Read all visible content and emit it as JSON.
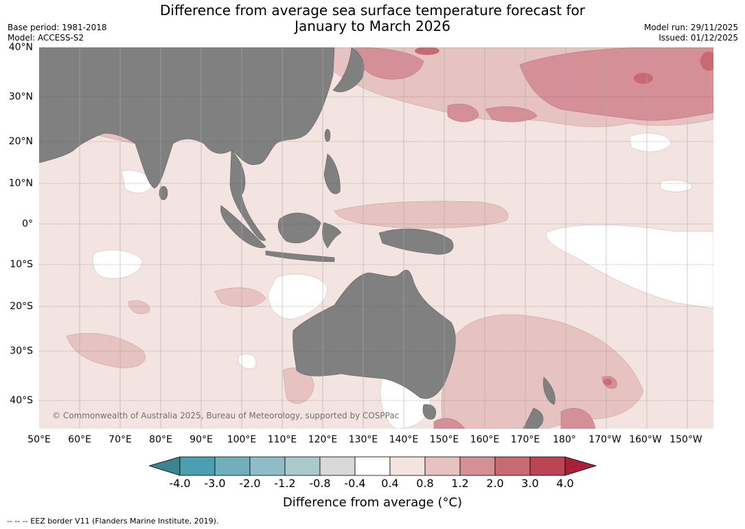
{
  "title_line1": "Difference from average sea surface temperature forecast for",
  "title_line2": "January to March 2026",
  "base_period": "Base period: 1981-2018",
  "model": "Model: ACCESS-S2",
  "model_run": "Model run: 29/11/2025",
  "issued": "Issued: 01/12/2025",
  "copyright": "© Commonwealth of Australia 2025, Bureau of Meteorology, supported by COSPPac",
  "colorbar_label": "Difference from average (°C)",
  "footer": "-- -- -- EEZ border V11 (Flanders Marine Institute, 2019).",
  "lat_labels": [
    "40°N",
    "30°N",
    "20°N",
    "10°N",
    "0°",
    "10°S",
    "20°S",
    "30°S",
    "40°S"
  ],
  "lon_labels": [
    "50°E",
    "60°E",
    "70°E",
    "80°E",
    "90°E",
    "100°E",
    "110°E",
    "120°E",
    "130°E",
    "140°E",
    "150°E",
    "160°E",
    "170°E",
    "180°",
    "170°W",
    "160°W",
    "150°W"
  ],
  "colorbar_ticks": [
    "-4.0",
    "-3.0",
    "-2.0",
    "-1.2",
    "-0.8",
    "-0.4",
    "0.4",
    "0.8",
    "1.2",
    "2.0",
    "3.0",
    "4.0"
  ],
  "colorbar_colors": [
    "#4a9fb0",
    "#6fb0bc",
    "#8fbcc6",
    "#aac9cc",
    "#d9d9d9",
    "#ffffff",
    "#f3e4e2",
    "#e6c3c0",
    "#d58f96",
    "#c86a72",
    "#bb4353"
  ],
  "colorbar_ext_low": "#3a8590",
  "colorbar_ext_high": "#a8203a",
  "land_color": "#808080"
}
